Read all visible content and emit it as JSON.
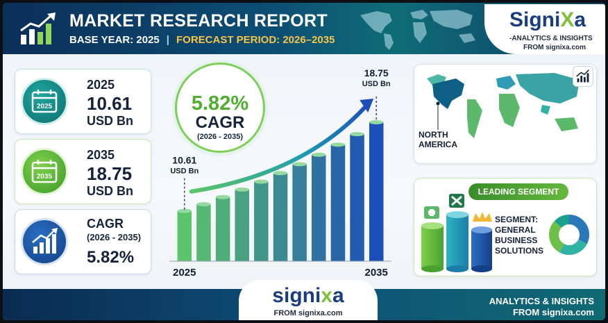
{
  "header": {
    "title": "MARKET RESEARCH REPORT",
    "base_year": "BASE YEAR: 2025",
    "separator": "|",
    "forecast": "FORECAST PERIOD: 2026–2035"
  },
  "brand": {
    "logo_main": "Signi",
    "logo_x": "X",
    "logo_end": "a",
    "tagline": "-ANALYTICS & INSIGHTS",
    "from": "FROM signixa.com"
  },
  "cards": {
    "start": {
      "year": "2025",
      "value": "10.61",
      "unit": "USD Bn"
    },
    "end": {
      "year": "2035",
      "value": "18.75",
      "unit": "USD Bn"
    },
    "cagr": {
      "label": "CAGR",
      "period": "(2026 - 2035)",
      "value": "5.82%"
    }
  },
  "cagr_badge": {
    "value": "5.82%",
    "label": "CAGR",
    "period": "(2026 - 2035)"
  },
  "chart_data": {
    "type": "bar",
    "x_start_label": "2025",
    "x_end_label": "2035",
    "values": [
      10.61,
      11.23,
      11.88,
      12.57,
      13.3,
      14.08,
      14.9,
      15.77,
      16.69,
      17.66,
      18.75
    ],
    "start_label": {
      "value": "10.61",
      "unit": "USD Bn"
    },
    "end_label": {
      "value": "18.75",
      "unit": "USD Bn"
    },
    "trend_arrow": true,
    "colors": [
      "#5cc46a",
      "#1c4fb8"
    ]
  },
  "region": {
    "line1": "NORTH",
    "line2": "AMERICA",
    "highlight_color": "#0e5f86"
  },
  "segment": {
    "pill": "LEADING SEGMENT",
    "line1": "SEGMENT:",
    "line2": "GENERAL",
    "line3": "BUSINESS",
    "line4": "SOLUTIONS",
    "donut_colors": [
      "#2a78b8",
      "#2fb3a2",
      "#6cc04a",
      "#1a9f8a"
    ]
  },
  "footer": {
    "logo_main": "signi",
    "logo_x": "x",
    "logo_end": "a",
    "from": "FROM signixa.com",
    "tag_line1": "ANALYTICS & INSIGHTS",
    "tag_line2": "FROM signixa.com"
  }
}
